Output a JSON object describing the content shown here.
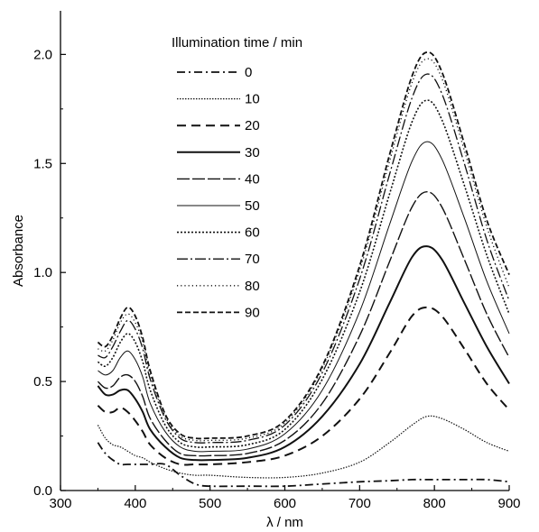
{
  "chart_data": {
    "type": "line",
    "title": "",
    "xlabel": "λ / nm",
    "ylabel": "Absorbance",
    "xlim": [
      300,
      900
    ],
    "ylim": [
      0,
      2.2
    ],
    "x_ticks": [
      300,
      400,
      500,
      600,
      700,
      800,
      900
    ],
    "y_ticks": [
      0.0,
      0.5,
      1.0,
      1.5,
      2.0
    ],
    "x_tick_labels": [
      "300",
      "400",
      "500",
      "600",
      "700",
      "800",
      "900"
    ],
    "y_tick_labels": [
      "0.0",
      "0.5",
      "1.0",
      "1.5",
      "2.0"
    ],
    "grid": false,
    "legend": {
      "title": "Illumination time / min",
      "placement": "top-center"
    },
    "x": [
      350,
      360,
      370,
      380,
      390,
      400,
      410,
      420,
      440,
      460,
      480,
      500,
      550,
      600,
      650,
      700,
      740,
      770,
      790,
      810,
      840,
      870,
      900
    ],
    "series": [
      {
        "name": "0",
        "style": "dashdot",
        "values": [
          0.22,
          0.17,
          0.14,
          0.12,
          0.12,
          0.12,
          0.12,
          0.12,
          0.12,
          0.07,
          0.03,
          0.02,
          0.02,
          0.02,
          0.03,
          0.04,
          0.045,
          0.05,
          0.05,
          0.05,
          0.05,
          0.05,
          0.04
        ]
      },
      {
        "name": "10",
        "style": "densedot",
        "values": [
          0.3,
          0.24,
          0.21,
          0.2,
          0.18,
          0.16,
          0.15,
          0.13,
          0.1,
          0.08,
          0.07,
          0.07,
          0.06,
          0.06,
          0.08,
          0.13,
          0.22,
          0.3,
          0.34,
          0.33,
          0.28,
          0.22,
          0.18
        ]
      },
      {
        "name": "20",
        "style": "dash",
        "values": [
          0.39,
          0.36,
          0.36,
          0.38,
          0.36,
          0.32,
          0.27,
          0.21,
          0.15,
          0.12,
          0.12,
          0.12,
          0.13,
          0.16,
          0.25,
          0.42,
          0.63,
          0.8,
          0.84,
          0.8,
          0.65,
          0.49,
          0.37
        ]
      },
      {
        "name": "30",
        "style": "solid",
        "values": [
          0.48,
          0.44,
          0.44,
          0.46,
          0.46,
          0.42,
          0.36,
          0.28,
          0.2,
          0.15,
          0.14,
          0.14,
          0.15,
          0.2,
          0.34,
          0.58,
          0.86,
          1.07,
          1.12,
          1.06,
          0.86,
          0.66,
          0.49
        ]
      },
      {
        "name": "40",
        "style": "longdash",
        "values": [
          0.5,
          0.47,
          0.48,
          0.52,
          0.53,
          0.5,
          0.43,
          0.33,
          0.23,
          0.17,
          0.16,
          0.16,
          0.17,
          0.23,
          0.4,
          0.71,
          1.05,
          1.3,
          1.37,
          1.3,
          1.06,
          0.81,
          0.61
        ]
      },
      {
        "name": "50",
        "style": "thin",
        "values": [
          0.55,
          0.53,
          0.55,
          0.61,
          0.64,
          0.6,
          0.52,
          0.4,
          0.27,
          0.2,
          0.18,
          0.18,
          0.19,
          0.26,
          0.46,
          0.82,
          1.22,
          1.51,
          1.6,
          1.52,
          1.25,
          0.96,
          0.72
        ]
      },
      {
        "name": "60",
        "style": "dot",
        "values": [
          0.59,
          0.57,
          0.61,
          0.68,
          0.72,
          0.68,
          0.59,
          0.46,
          0.3,
          0.22,
          0.2,
          0.2,
          0.21,
          0.28,
          0.51,
          0.91,
          1.36,
          1.69,
          1.79,
          1.7,
          1.4,
          1.08,
          0.81
        ]
      },
      {
        "name": "70",
        "style": "dashdotlong",
        "values": [
          0.62,
          0.61,
          0.66,
          0.73,
          0.78,
          0.74,
          0.65,
          0.51,
          0.33,
          0.24,
          0.22,
          0.22,
          0.23,
          0.3,
          0.54,
          0.97,
          1.45,
          1.8,
          1.91,
          1.82,
          1.5,
          1.15,
          0.87
        ]
      },
      {
        "name": "80",
        "style": "sparsedot",
        "values": [
          0.65,
          0.64,
          0.69,
          0.77,
          0.81,
          0.77,
          0.68,
          0.53,
          0.34,
          0.25,
          0.23,
          0.23,
          0.24,
          0.31,
          0.56,
          1.01,
          1.51,
          1.87,
          1.98,
          1.89,
          1.56,
          1.21,
          0.93
        ]
      },
      {
        "name": "90",
        "style": "shortdash",
        "values": [
          0.68,
          0.66,
          0.71,
          0.79,
          0.84,
          0.8,
          0.7,
          0.55,
          0.35,
          0.26,
          0.24,
          0.24,
          0.25,
          0.32,
          0.57,
          1.03,
          1.54,
          1.9,
          2.01,
          1.92,
          1.59,
          1.24,
          0.99
        ]
      }
    ]
  }
}
